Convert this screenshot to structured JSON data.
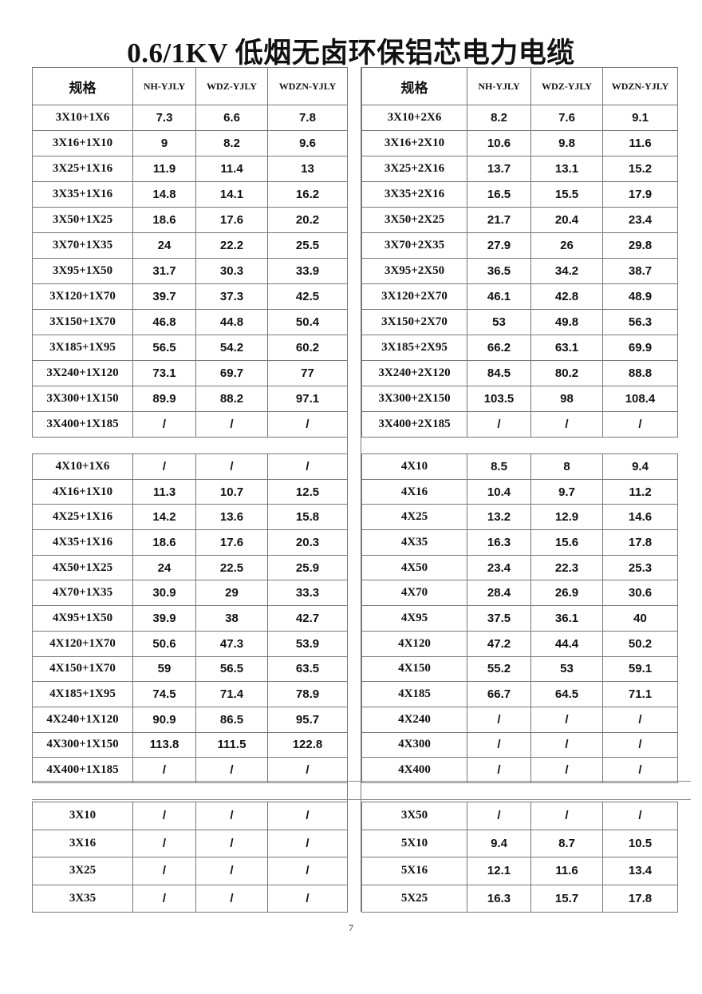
{
  "title": "0.6/1KV 低烟无卤环保铝芯电力电缆",
  "headers_left": [
    "规格",
    "NH-YJLY",
    "WDZ-YJLY",
    "WDZN-YJLY"
  ],
  "headers_right": [
    "规格",
    "NH-YJLY",
    "WDZ-YJLY",
    "WDZN-YJLY"
  ],
  "block1": {
    "left": [
      [
        "3X10+1X6",
        "7.3",
        "6.6",
        "7.8"
      ],
      [
        "3X16+1X10",
        "9",
        "8.2",
        "9.6"
      ],
      [
        "3X25+1X16",
        "11.9",
        "11.4",
        "13"
      ],
      [
        "3X35+1X16",
        "14.8",
        "14.1",
        "16.2"
      ],
      [
        "3X50+1X25",
        "18.6",
        "17.6",
        "20.2"
      ],
      [
        "3X70+1X35",
        "24",
        "22.2",
        "25.5"
      ],
      [
        "3X95+1X50",
        "31.7",
        "30.3",
        "33.9"
      ],
      [
        "3X120+1X70",
        "39.7",
        "37.3",
        "42.5"
      ],
      [
        "3X150+1X70",
        "46.8",
        "44.8",
        "50.4"
      ],
      [
        "3X185+1X95",
        "56.5",
        "54.2",
        "60.2"
      ],
      [
        "3X240+1X120",
        "73.1",
        "69.7",
        "77"
      ],
      [
        "3X300+1X150",
        "89.9",
        "88.2",
        "97.1"
      ],
      [
        "3X400+1X185",
        "/",
        "/",
        "/"
      ]
    ],
    "right": [
      [
        "3X10+2X6",
        "8.2",
        "7.6",
        "9.1"
      ],
      [
        "3X16+2X10",
        "10.6",
        "9.8",
        "11.6"
      ],
      [
        "3X25+2X16",
        "13.7",
        "13.1",
        "15.2"
      ],
      [
        "3X35+2X16",
        "16.5",
        "15.5",
        "17.9"
      ],
      [
        "3X50+2X25",
        "21.7",
        "20.4",
        "23.4"
      ],
      [
        "3X70+2X35",
        "27.9",
        "26",
        "29.8"
      ],
      [
        "3X95+2X50",
        "36.5",
        "34.2",
        "38.7"
      ],
      [
        "3X120+2X70",
        "46.1",
        "42.8",
        "48.9"
      ],
      [
        "3X150+2X70",
        "53",
        "49.8",
        "56.3"
      ],
      [
        "3X185+2X95",
        "66.2",
        "63.1",
        "69.9"
      ],
      [
        "3X240+2X120",
        "84.5",
        "80.2",
        "88.8"
      ],
      [
        "3X300+2X150",
        "103.5",
        "98",
        "108.4"
      ],
      [
        "3X400+2X185",
        "/",
        "/",
        "/"
      ]
    ]
  },
  "block2": {
    "left": [
      [
        "4X10+1X6",
        "/",
        "/",
        "/"
      ],
      [
        "4X16+1X10",
        "11.3",
        "10.7",
        "12.5"
      ],
      [
        "4X25+1X16",
        "14.2",
        "13.6",
        "15.8"
      ],
      [
        "4X35+1X16",
        "18.6",
        "17.6",
        "20.3"
      ],
      [
        "4X50+1X25",
        "24",
        "22.5",
        "25.9"
      ],
      [
        "4X70+1X35",
        "30.9",
        "29",
        "33.3"
      ],
      [
        "4X95+1X50",
        "39.9",
        "38",
        "42.7"
      ],
      [
        "4X120+1X70",
        "50.6",
        "47.3",
        "53.9"
      ],
      [
        "4X150+1X70",
        "59",
        "56.5",
        "63.5"
      ],
      [
        "4X185+1X95",
        "74.5",
        "71.4",
        "78.9"
      ],
      [
        "4X240+1X120",
        "90.9",
        "86.5",
        "95.7"
      ],
      [
        "4X300+1X150",
        "113.8",
        "111.5",
        "122.8"
      ],
      [
        "4X400+1X185",
        "/",
        "/",
        "/"
      ]
    ],
    "right": [
      [
        "4X10",
        "8.5",
        "8",
        "9.4"
      ],
      [
        "4X16",
        "10.4",
        "9.7",
        "11.2"
      ],
      [
        "4X25",
        "13.2",
        "12.9",
        "14.6"
      ],
      [
        "4X35",
        "16.3",
        "15.6",
        "17.8"
      ],
      [
        "4X50",
        "23.4",
        "22.3",
        "25.3"
      ],
      [
        "4X70",
        "28.4",
        "26.9",
        "30.6"
      ],
      [
        "4X95",
        "37.5",
        "36.1",
        "40"
      ],
      [
        "4X120",
        "47.2",
        "44.4",
        "50.2"
      ],
      [
        "4X150",
        "55.2",
        "53",
        "59.1"
      ],
      [
        "4X185",
        "66.7",
        "64.5",
        "71.1"
      ],
      [
        "4X240",
        "/",
        "/",
        "/"
      ],
      [
        "4X300",
        "/",
        "/",
        "/"
      ],
      [
        "4X400",
        "/",
        "/",
        "/"
      ]
    ]
  },
  "block3": {
    "left": [
      [
        "3X10",
        "/",
        "/",
        "/"
      ],
      [
        "3X16",
        "/",
        "/",
        "/"
      ],
      [
        "3X25",
        "/",
        "/",
        "/"
      ],
      [
        "3X35",
        "/",
        "/",
        "/"
      ]
    ],
    "right": [
      [
        "3X50",
        "/",
        "/",
        "/"
      ],
      [
        "5X10",
        "9.4",
        "8.7",
        "10.5"
      ],
      [
        "5X16",
        "12.1",
        "11.6",
        "13.4"
      ],
      [
        "5X25",
        "16.3",
        "15.7",
        "17.8"
      ]
    ]
  },
  "page_number": "7"
}
